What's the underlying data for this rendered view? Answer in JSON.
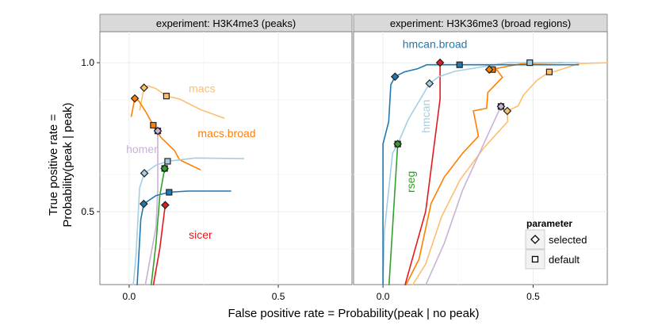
{
  "chart_data": {
    "type": "line",
    "xlabel": "False positive rate = Probability(peak | no peak)",
    "ylabel_lines": [
      "True positive rate =",
      "Probability(peak | peak)"
    ],
    "xlim": [
      -0.098,
      0.747
    ],
    "ylim": [
      0.255,
      1.104
    ],
    "x_ticks": [
      0,
      0.5
    ],
    "x_tick_labels": [
      "0.0",
      "0.5"
    ],
    "y_ticks": [
      0.5,
      1.0
    ],
    "y_tick_labels": [
      "0.5",
      "1.0"
    ],
    "grid": true,
    "legend": {
      "title": "parameter",
      "position": "bottom-right of right panel",
      "entries": [
        {
          "label": "selected",
          "shape": "diamond"
        },
        {
          "label": "default",
          "shape": "square"
        }
      ]
    },
    "colors": {
      "macs": "#FDBF6F",
      "macs.broad": "#FF7F00",
      "homer": "#CAB2D6",
      "hmcan": "#A6CEE3",
      "hmcan.broad": "#1F78B4",
      "rseg": "#33A02C",
      "sicer": "#E31A1C"
    },
    "panels": [
      {
        "title": "experiment: H3K4me3 (peaks)",
        "labels": [
          {
            "text": "macs",
            "series": "macs",
            "x": 0.2,
            "y": 0.9,
            "rotate": false
          },
          {
            "text": "macs.broad",
            "series": "macs.broad",
            "x": 0.23,
            "y": 0.75,
            "rotate": false
          },
          {
            "text": "homer",
            "series": "homer",
            "x": -0.01,
            "y": 0.697,
            "rotate": false
          },
          {
            "text": "sicer",
            "series": "sicer",
            "x": 0.2,
            "y": 0.41,
            "rotate": false
          }
        ],
        "series": [
          {
            "name": "macs",
            "x": [
              0.035,
              0.05,
              0.063,
              0.09,
              0.125,
              0.169,
              0.24,
              0.32
            ],
            "y": [
              0.84,
              0.916,
              0.922,
              0.913,
              0.888,
              0.878,
              0.842,
              0.813
            ],
            "selected": [
              0.05,
              0.916
            ],
            "default": [
              0.125,
              0.888
            ]
          },
          {
            "name": "macs.broad",
            "x": [
              0.007,
              0.019,
              0.032,
              0.054,
              0.081,
              0.107,
              0.152,
              0.169,
              0.24
            ],
            "y": [
              0.818,
              0.88,
              0.872,
              0.838,
              0.79,
              0.749,
              0.705,
              0.674,
              0.64
            ],
            "selected": [
              0.019,
              0.88
            ],
            "default": [
              0.081,
              0.79
            ]
          },
          {
            "name": "homer",
            "x": [
              0.054,
              0.09,
              0.096,
              0.096
            ],
            "y": [
              0.253,
              0.448,
              0.572,
              0.771
            ],
            "selected": [
              0.096,
              0.771
            ],
            "default": [
              0.096,
              0.771
            ]
          },
          {
            "name": "hmcan",
            "x": [
              0.014,
              0.023,
              0.035,
              0.051,
              0.09,
              0.129,
              0.222,
              0.386
            ],
            "y": [
              0.253,
              0.35,
              0.58,
              0.629,
              0.656,
              0.669,
              0.68,
              0.678
            ],
            "selected": [
              0.051,
              0.629
            ],
            "default": [
              0.129,
              0.669
            ]
          },
          {
            "name": "hmcan.broad",
            "x": [
              0.027,
              0.039,
              0.049,
              0.09,
              0.134,
              0.196,
              0.342
            ],
            "y": [
              0.253,
              0.474,
              0.526,
              0.554,
              0.565,
              0.569,
              0.569
            ],
            "selected": [
              0.049,
              0.526
            ],
            "default": [
              0.134,
              0.565
            ]
          },
          {
            "name": "rseg",
            "x": [
              0.074,
              0.09,
              0.103,
              0.119
            ],
            "y": [
              0.253,
              0.394,
              0.554,
              0.645
            ],
            "selected": [
              0.119,
              0.645
            ],
            "default": [
              0.119,
              0.645
            ]
          },
          {
            "name": "sicer",
            "x": [
              0.081,
              0.103,
              0.121
            ],
            "y": [
              0.253,
              0.377,
              0.522
            ],
            "selected": [
              0.121,
              0.522
            ],
            "default": null
          }
        ]
      },
      {
        "title": "experiment: H3K36me3 (broad regions)",
        "labels": [
          {
            "text": "hmcan.broad",
            "series": "hmcan.broad",
            "x": 0.065,
            "y": 1.05,
            "rotate": false
          },
          {
            "text": "hmcan",
            "series": "hmcan",
            "x": 0.155,
            "y": 0.82,
            "rotate": true
          },
          {
            "text": "rseg",
            "series": "rseg",
            "x": 0.105,
            "y": 0.6,
            "rotate": true
          }
        ],
        "series": [
          {
            "name": "macs",
            "x": [
              0.098,
              0.142,
              0.195,
              0.257,
              0.336,
              0.415,
              0.414,
              0.45,
              0.468,
              0.512,
              0.554,
              0.574,
              0.653,
              0.75
            ],
            "y": [
              0.253,
              0.324,
              0.483,
              0.607,
              0.714,
              0.802,
              0.838,
              0.855,
              0.891,
              0.94,
              0.969,
              0.971,
              0.997,
              1.0
            ],
            "selected": [
              0.414,
              0.838
            ],
            "default": [
              0.554,
              0.969
            ]
          },
          {
            "name": "homer",
            "x": [
              0.142,
              0.204,
              0.265,
              0.345,
              0.393
            ],
            "y": [
              0.253,
              0.394,
              0.572,
              0.749,
              0.853
            ],
            "selected": [
              0.393,
              0.853
            ],
            "default": [
              0.393,
              0.853
            ]
          },
          {
            "name": "macs.broad",
            "x": [
              0.076,
              0.12,
              0.16,
              0.204,
              0.265,
              0.318,
              0.301,
              0.345,
              0.349,
              0.398,
              0.38,
              0.362,
              0.415,
              0.468,
              0.6
            ],
            "y": [
              0.253,
              0.341,
              0.527,
              0.616,
              0.696,
              0.753,
              0.838,
              0.847,
              0.9,
              0.951,
              0.975,
              0.977,
              0.988,
              0.997,
              1.0
            ],
            "selected": [
              0.354,
              0.977
            ],
            "default": [
              0.365,
              0.977
            ]
          },
          {
            "name": "sicer",
            "x": [
              0.073,
              0.142,
              0.19,
              0.19
            ],
            "y": [
              0.253,
              0.5,
              0.878,
              1.0
            ],
            "selected": [
              0.19,
              1.0
            ],
            "default": null
          },
          {
            "name": "hmcan",
            "x": [
              0,
              0.005,
              0.032,
              0.049,
              0.085,
              0.155,
              0.186,
              0.239,
              0.415,
              0.489,
              0.653
            ],
            "y": [
              0.253,
              0.439,
              0.696,
              0.727,
              0.811,
              0.93,
              0.953,
              0.971,
              1.0,
              1.0,
              1.0
            ],
            "selected": [
              0.155,
              0.93
            ],
            "default": [
              0.489,
              1.0
            ]
          },
          {
            "name": "hmcan.broad",
            "x": [
              0,
              0,
              0.019,
              0.026,
              0.04,
              0.071,
              0.116,
              0.146,
              0.255,
              0.653
            ],
            "y": [
              0.253,
              0.727,
              0.802,
              0.926,
              0.953,
              0.969,
              0.98,
              0.993,
              0.993,
              0.993
            ],
            "selected": [
              0.04,
              0.953
            ],
            "default": [
              0.255,
              0.993
            ]
          },
          {
            "name": "rseg",
            "x": [
              0.02,
              0.049
            ],
            "y": [
              0.253,
              0.727
            ],
            "selected": [
              0.049,
              0.727
            ],
            "default": [
              0.049,
              0.727
            ]
          }
        ]
      }
    ]
  }
}
